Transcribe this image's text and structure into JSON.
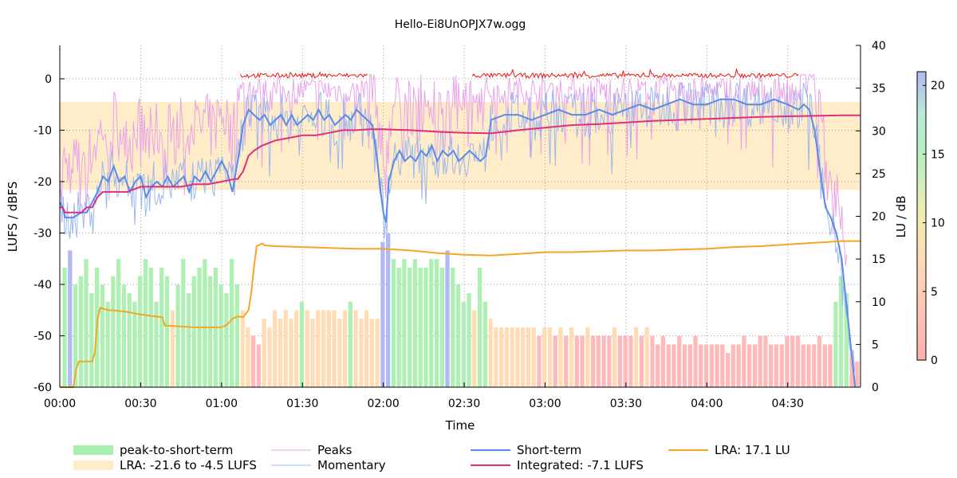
{
  "chart_data": {
    "type": "line",
    "title": "Hello-Ei8UnOPJX7w.ogg",
    "xlabel": "Time",
    "ylabel": "LUFS / dBFS",
    "y2label": "LU / dB",
    "xlim": [
      0,
      297
    ],
    "ylim": [
      -60,
      6.5
    ],
    "y2lim": [
      0,
      40
    ],
    "colorbar_lim": [
      0,
      21
    ],
    "x_ticks": [
      {
        "v": 0,
        "label": "00:00"
      },
      {
        "v": 30,
        "label": "00:30"
      },
      {
        "v": 60,
        "label": "01:00"
      },
      {
        "v": 90,
        "label": "01:30"
      },
      {
        "v": 120,
        "label": "02:00"
      },
      {
        "v": 150,
        "label": "02:30"
      },
      {
        "v": 180,
        "label": "03:00"
      },
      {
        "v": 210,
        "label": "03:30"
      },
      {
        "v": 240,
        "label": "04:00"
      },
      {
        "v": 270,
        "label": "04:30"
      }
    ],
    "y_ticks": [
      {
        "v": 0,
        "label": "0"
      },
      {
        "v": -10,
        "label": "-10"
      },
      {
        "v": -20,
        "label": "-20"
      },
      {
        "v": -30,
        "label": "-30"
      },
      {
        "v": -40,
        "label": "-40"
      },
      {
        "v": -50,
        "label": "-50"
      },
      {
        "v": -60,
        "label": "-60"
      }
    ],
    "y2_ticks": [
      {
        "v": 0,
        "label": "0"
      },
      {
        "v": 5,
        "label": "5"
      },
      {
        "v": 10,
        "label": "10"
      },
      {
        "v": 15,
        "label": "15"
      },
      {
        "v": 20,
        "label": "20"
      },
      {
        "v": 25,
        "label": "25"
      },
      {
        "v": 30,
        "label": "30"
      },
      {
        "v": 35,
        "label": "35"
      },
      {
        "v": 40,
        "label": "40"
      }
    ],
    "colorbar_ticks": [
      {
        "v": 0,
        "label": "0"
      },
      {
        "v": 5,
        "label": "5"
      },
      {
        "v": 10,
        "label": "10"
      },
      {
        "v": 15,
        "label": "15"
      },
      {
        "v": 20,
        "label": "20"
      }
    ],
    "lra_band": [
      -21.6,
      -4.5
    ],
    "series": [
      {
        "name": "Short-term",
        "color": "#5a8aea",
        "x": [
          0,
          1,
          2,
          3,
          5,
          8,
          10,
          12,
          14,
          16,
          18,
          20,
          22,
          24,
          26,
          28,
          30,
          32,
          34,
          36,
          38,
          40,
          42,
          44,
          46,
          48,
          50,
          52,
          54,
          56,
          58,
          60,
          62,
          64,
          65,
          66,
          68,
          70,
          72,
          74,
          76,
          78,
          80,
          82,
          84,
          86,
          88,
          90,
          92,
          94,
          96,
          98,
          100,
          102,
          104,
          106,
          108,
          110,
          112,
          114,
          116,
          117,
          118,
          119,
          120,
          121,
          122,
          124,
          126,
          128,
          130,
          132,
          134,
          136,
          138,
          140,
          142,
          144,
          146,
          148,
          150,
          152,
          154,
          156,
          158,
          160,
          165,
          170,
          175,
          180,
          185,
          190,
          195,
          200,
          205,
          210,
          215,
          220,
          225,
          230,
          235,
          240,
          245,
          250,
          255,
          260,
          265,
          270,
          274,
          276,
          278,
          280,
          282,
          284,
          286,
          288,
          290,
          292,
          294,
          295
        ],
        "y": [
          -24,
          -25,
          -27,
          -27,
          -27,
          -26,
          -26,
          -24,
          -22,
          -19,
          -20,
          -17,
          -20,
          -19,
          -22,
          -20,
          -19,
          -23,
          -21,
          -20,
          -21,
          -19,
          -21,
          -20,
          -19,
          -22,
          -19,
          -20,
          -18,
          -20,
          -18,
          -16,
          -18,
          -22,
          -19,
          -16,
          -9,
          -6,
          -7,
          -8,
          -7,
          -9,
          -8,
          -7,
          -9,
          -7,
          -9,
          -8,
          -7,
          -8,
          -6,
          -8,
          -7,
          -9,
          -8,
          -7,
          -8,
          -6,
          -7,
          -8,
          -9,
          -13,
          -17,
          -22,
          -26,
          -28,
          -20,
          -16,
          -14,
          -16,
          -15,
          -16,
          -14,
          -15,
          -13,
          -16,
          -14,
          -15,
          -14,
          -16,
          -15,
          -14,
          -15,
          -16,
          -15,
          -8,
          -7,
          -7,
          -8,
          -7,
          -6,
          -7,
          -7,
          -6,
          -7,
          -6,
          -5,
          -6,
          -5,
          -4,
          -5,
          -5,
          -4,
          -4,
          -5,
          -5,
          -4,
          -5,
          -6,
          -5,
          -6,
          -10,
          -18,
          -25,
          -27,
          -30,
          -35,
          -45,
          -55,
          -60
        ]
      },
      {
        "name": "Integrated: -7.1 LUFS",
        "color": "#e0307a",
        "x": [
          0,
          1,
          2,
          5,
          8,
          10,
          12,
          14,
          16,
          18,
          20,
          25,
          30,
          35,
          40,
          45,
          50,
          55,
          60,
          65,
          66,
          68,
          70,
          72,
          75,
          80,
          85,
          90,
          95,
          100,
          105,
          110,
          115,
          120,
          130,
          140,
          150,
          160,
          170,
          180,
          190,
          200,
          210,
          220,
          230,
          240,
          250,
          260,
          270,
          280,
          290,
          297
        ],
        "y": [
          -25,
          -25,
          -26,
          -26,
          -26,
          -25,
          -25,
          -23,
          -22,
          -22,
          -22,
          -22,
          -21,
          -21,
          -21,
          -21,
          -20.5,
          -20.5,
          -20,
          -19.5,
          -19.5,
          -18,
          -15,
          -14,
          -13,
          -12,
          -11.5,
          -11,
          -11,
          -10.5,
          -10,
          -10,
          -9.8,
          -9.8,
          -10,
          -10.3,
          -10.5,
          -10.6,
          -10,
          -9.5,
          -9,
          -8.8,
          -8.5,
          -8.2,
          -8,
          -7.8,
          -7.6,
          -7.4,
          -7.3,
          -7.2,
          -7.1,
          -7.1
        ]
      },
      {
        "name": "LRA: 17.1 LU",
        "color": "#f5a623",
        "axis": "y2",
        "x": [
          0,
          5,
          6,
          7,
          10,
          12,
          13,
          14,
          15,
          18,
          20,
          25,
          30,
          35,
          38,
          39,
          40,
          45,
          50,
          55,
          60,
          62,
          64,
          66,
          68,
          70,
          71,
          72,
          73,
          75,
          76,
          80,
          90,
          100,
          110,
          120,
          130,
          140,
          150,
          160,
          170,
          180,
          190,
          200,
          210,
          220,
          230,
          240,
          250,
          260,
          270,
          280,
          285,
          290,
          297
        ],
        "y": [
          0,
          0,
          2,
          3,
          3,
          3,
          4,
          8,
          9.3,
          9,
          9,
          8.8,
          8.5,
          8.3,
          8.2,
          7.2,
          7.2,
          7.1,
          7.0,
          7.0,
          7.0,
          7.3,
          8.0,
          8.3,
          8.2,
          9,
          11,
          14,
          16.5,
          16.8,
          16.6,
          16.5,
          16.4,
          16.3,
          16.2,
          16.2,
          16.0,
          15.7,
          15.5,
          15.4,
          15.6,
          15.8,
          15.8,
          15.9,
          16.0,
          16.0,
          16.1,
          16.2,
          16.4,
          16.5,
          16.7,
          16.9,
          17.0,
          17.1,
          17.1
        ]
      },
      {
        "name": "Momentary",
        "color": "#9bb8f0"
      },
      {
        "name": "Peaks",
        "color": "#e9a2ea"
      }
    ],
    "peak_to_short_term": {
      "name": "peak-to-short-term",
      "color": "#a8f0b0",
      "x": [
        2,
        4,
        6,
        8,
        10,
        12,
        14,
        16,
        18,
        20,
        22,
        24,
        26,
        28,
        30,
        32,
        34,
        36,
        38,
        40,
        42,
        44,
        46,
        48,
        50,
        52,
        54,
        56,
        58,
        60,
        62,
        64,
        66,
        68,
        70,
        72,
        74,
        76,
        78,
        80,
        82,
        84,
        86,
        88,
        90,
        92,
        94,
        96,
        98,
        100,
        102,
        104,
        106,
        108,
        110,
        112,
        114,
        116,
        118,
        120,
        122,
        124,
        126,
        128,
        130,
        132,
        134,
        136,
        138,
        140,
        142,
        144,
        146,
        148,
        150,
        152,
        154,
        156,
        158,
        160,
        162,
        164,
        166,
        168,
        170,
        172,
        174,
        176,
        178,
        180,
        182,
        184,
        186,
        188,
        190,
        192,
        194,
        196,
        198,
        200,
        202,
        204,
        206,
        208,
        210,
        212,
        214,
        216,
        218,
        220,
        222,
        224,
        226,
        228,
        230,
        232,
        234,
        236,
        238,
        240,
        242,
        244,
        246,
        248,
        250,
        252,
        254,
        256,
        258,
        260,
        262,
        264,
        266,
        268,
        270,
        272,
        274,
        276,
        278,
        280,
        282,
        284,
        286,
        288,
        290,
        292,
        294,
        296
      ],
      "values": [
        14,
        16,
        12,
        13,
        15,
        11,
        14,
        12,
        10,
        13,
        15,
        12,
        11,
        10,
        13,
        15,
        14,
        10,
        14,
        13,
        9,
        12,
        15,
        11,
        13,
        14,
        15,
        13,
        14,
        12,
        11,
        15,
        12,
        9,
        7,
        6,
        5,
        8,
        7,
        9,
        8,
        9,
        8,
        9,
        10,
        9,
        8,
        9,
        9,
        9,
        9,
        8,
        9,
        10,
        9,
        8,
        9,
        8,
        8,
        17,
        18,
        15,
        14,
        15,
        14,
        15,
        14,
        14,
        15,
        15,
        14,
        16,
        14,
        12,
        10,
        11,
        9,
        14,
        10,
        8,
        7,
        7,
        7,
        7,
        7,
        7,
        7,
        7,
        6,
        7,
        7,
        6,
        7,
        6,
        7,
        6,
        6,
        7,
        6,
        6,
        6,
        6,
        7,
        6,
        6,
        6,
        7,
        6,
        7,
        6,
        5,
        6,
        5,
        5,
        6,
        5,
        5,
        6,
        5,
        5,
        5,
        5,
        5,
        4,
        5,
        5,
        6,
        5,
        5,
        6,
        6,
        5,
        5,
        5,
        6,
        6,
        6,
        5,
        5,
        5,
        6,
        5,
        5,
        10,
        13,
        11,
        4,
        3
      ]
    },
    "lra_fill": {
      "name": "LRA: -21.6 to -4.5 LUFS",
      "color": "#ffecc8"
    },
    "legend": [
      {
        "key": "peak-to-short-term",
        "label": "peak-to-short-term",
        "kind": "box",
        "color": "#a8f0b0"
      },
      {
        "key": "lra-range",
        "label": "LRA: -21.6 to -4.5 LUFS",
        "kind": "box",
        "color": "#ffecc8"
      },
      {
        "key": "peaks",
        "label": "Peaks",
        "kind": "thin",
        "color": "#e9a2ea"
      },
      {
        "key": "momentary",
        "label": "Momentary",
        "kind": "thin",
        "color": "#9bb8f0"
      },
      {
        "key": "short-term",
        "label": "Short-term",
        "kind": "line",
        "color": "#5a8aea"
      },
      {
        "key": "integrated",
        "label": "Integrated: -7.1 LUFS",
        "kind": "line",
        "color": "#e0307a"
      },
      {
        "key": "lra",
        "label": "LRA: 17.1 LU",
        "kind": "line",
        "color": "#f5a623"
      }
    ],
    "grid": true,
    "legend_position": "bottom"
  }
}
